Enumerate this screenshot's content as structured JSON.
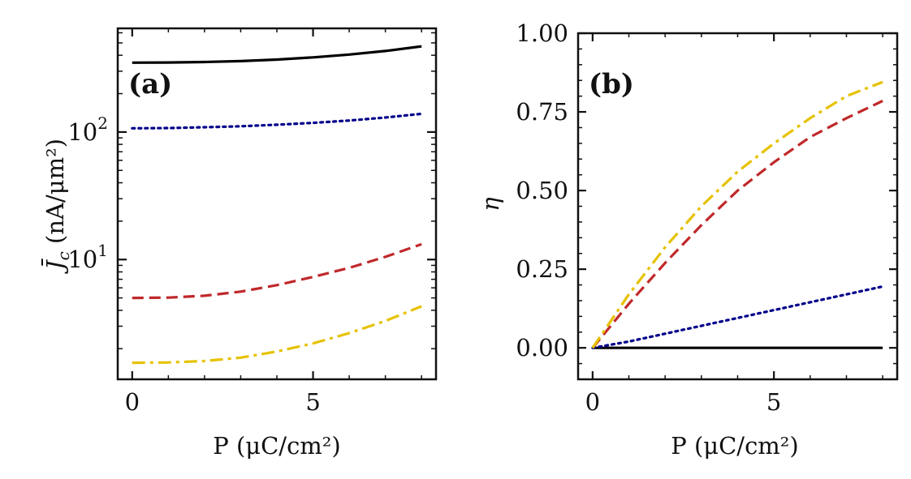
{
  "chart_data": [
    {
      "panel": "a",
      "type": "line",
      "panel_label": "(a)",
      "xlabel": "P (μC/cm²)",
      "ylabel": "J̄",
      "ylabel_sub": "c",
      "ylabel_unit": " (nA/μm²)",
      "yscale": "log",
      "xlim": [
        -0.4,
        8.4
      ],
      "ylim": [
        1.15,
        650
      ],
      "xticks": [
        0,
        5
      ],
      "xtick_labels": [
        "0",
        "5"
      ],
      "yticks_major": [
        10,
        100
      ],
      "ytick_labels": [
        {
          "base": "10",
          "exp": "1"
        },
        {
          "base": "10",
          "exp": "2"
        }
      ],
      "series": [
        {
          "name": "black-solid",
          "color": "#000000",
          "dash": "solid",
          "x": [
            0,
            1,
            2,
            3,
            4,
            5,
            6,
            7,
            8
          ],
          "y": [
            350,
            351,
            354,
            360,
            370,
            385,
            405,
            432,
            470
          ]
        },
        {
          "name": "blue-dotted",
          "color": "#00008b",
          "dash": "dotted",
          "x": [
            0,
            1,
            2,
            3,
            4,
            5,
            6,
            7,
            8
          ],
          "y": [
            107,
            107.5,
            109,
            111,
            114,
            118,
            123,
            130,
            139
          ]
        },
        {
          "name": "red-dashed",
          "color": "#c0282a",
          "dash": "dashed",
          "x": [
            0,
            1,
            2,
            3,
            4,
            5,
            6,
            7,
            8
          ],
          "y": [
            5.0,
            5.03,
            5.2,
            5.6,
            6.3,
            7.3,
            8.6,
            10.5,
            13.2
          ]
        },
        {
          "name": "gold-dashdot",
          "color": "#e6c200",
          "dash": "dashdot",
          "x": [
            0,
            1,
            2,
            3,
            4,
            5,
            6,
            7,
            8
          ],
          "y": [
            1.55,
            1.56,
            1.6,
            1.7,
            1.9,
            2.2,
            2.65,
            3.3,
            4.3
          ]
        }
      ]
    },
    {
      "panel": "b",
      "type": "line",
      "panel_label": "(b)",
      "xlabel": "P (μC/cm²)",
      "ylabel": "η",
      "yscale": "linear",
      "xlim": [
        -0.4,
        8.4
      ],
      "ylim": [
        -0.1,
        1.0
      ],
      "xticks": [
        0,
        5
      ],
      "xtick_labels": [
        "0",
        "5"
      ],
      "yticks": [
        0.0,
        0.25,
        0.5,
        0.75,
        1.0
      ],
      "ytick_labels": [
        "0.00",
        "0.25",
        "0.50",
        "0.75",
        "1.00"
      ],
      "series": [
        {
          "name": "black-solid",
          "color": "#000000",
          "dash": "solid",
          "x": [
            0,
            8
          ],
          "y": [
            0,
            0
          ]
        },
        {
          "name": "blue-dotted",
          "color": "#00008b",
          "dash": "dotted",
          "x": [
            0,
            1,
            2,
            3,
            4,
            5,
            6,
            7,
            8
          ],
          "y": [
            0,
            0.02,
            0.045,
            0.07,
            0.095,
            0.12,
            0.145,
            0.17,
            0.195
          ]
        },
        {
          "name": "red-dashed",
          "color": "#c0282a",
          "dash": "dashed",
          "x": [
            0,
            1,
            2,
            3,
            4,
            5,
            6,
            7,
            8
          ],
          "y": [
            0,
            0.14,
            0.27,
            0.39,
            0.5,
            0.59,
            0.67,
            0.73,
            0.785
          ]
        },
        {
          "name": "gold-dashdot",
          "color": "#e6c200",
          "dash": "dashdot",
          "x": [
            0,
            1,
            2,
            3,
            4,
            5,
            6,
            7,
            8
          ],
          "y": [
            0,
            0.17,
            0.32,
            0.45,
            0.56,
            0.65,
            0.73,
            0.8,
            0.845
          ]
        }
      ]
    }
  ]
}
